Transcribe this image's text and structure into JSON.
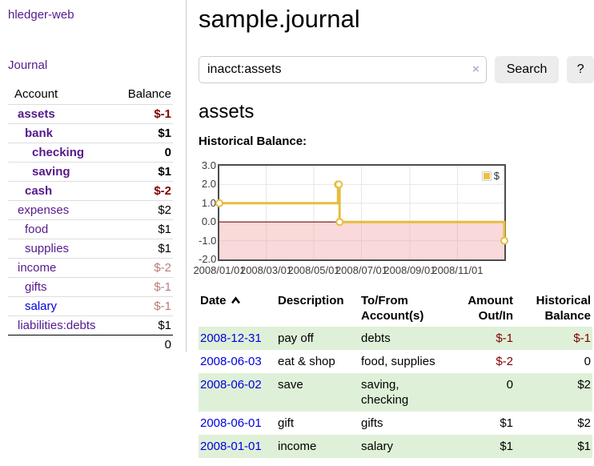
{
  "app": {
    "title": "hledger-web"
  },
  "sidebar": {
    "journal_link": "Journal",
    "table": {
      "headers": {
        "account": "Account",
        "balance": "Balance"
      },
      "rows": [
        {
          "name": "assets",
          "depth": 0,
          "bold": true,
          "balance": "$-1",
          "neg": "strong",
          "link": "visited"
        },
        {
          "name": "bank",
          "depth": 1,
          "bold": true,
          "balance": "$1",
          "neg": "none",
          "link": "visited"
        },
        {
          "name": "checking",
          "depth": 2,
          "bold": true,
          "balance": "0",
          "neg": "none",
          "link": "visited"
        },
        {
          "name": "saving",
          "depth": 2,
          "bold": true,
          "balance": "$1",
          "neg": "none",
          "link": "visited"
        },
        {
          "name": "cash",
          "depth": 1,
          "bold": true,
          "balance": "$-2",
          "neg": "strong",
          "link": "visited"
        },
        {
          "name": "expenses",
          "depth": 0,
          "bold": false,
          "balance": "$2",
          "neg": "none",
          "link": "visited"
        },
        {
          "name": "food",
          "depth": 1,
          "bold": false,
          "balance": "$1",
          "neg": "none",
          "link": "visited"
        },
        {
          "name": "supplies",
          "depth": 1,
          "bold": false,
          "balance": "$1",
          "neg": "none",
          "link": "visited"
        },
        {
          "name": "income",
          "depth": 0,
          "bold": false,
          "balance": "$-2",
          "neg": "soft",
          "link": "visited"
        },
        {
          "name": "gifts",
          "depth": 1,
          "bold": false,
          "balance": "$-1",
          "neg": "soft",
          "link": "visited"
        },
        {
          "name": "salary",
          "depth": 1,
          "bold": false,
          "balance": "$-1",
          "neg": "soft",
          "link": "unvisited"
        },
        {
          "name": "liabilities:debts",
          "depth": 0,
          "bold": false,
          "balance": "$1",
          "neg": "none",
          "link": "visited"
        }
      ],
      "total": "0"
    }
  },
  "header": {
    "title": "sample.journal"
  },
  "search": {
    "value": "inacct:assets",
    "clear_icon": "×",
    "button_label": "Search",
    "help_label": "?"
  },
  "account_page": {
    "title": "assets",
    "chart_label": "Historical Balance:"
  },
  "chart_data": {
    "type": "line",
    "title": "Historical Balance",
    "step": true,
    "series": [
      {
        "name": "$",
        "color": "#E6BD3F",
        "marker": "open-circle",
        "points": [
          [
            "2008-01-01",
            1
          ],
          [
            "2008-06-01",
            2
          ],
          [
            "2008-06-02",
            2
          ],
          [
            "2008-06-03",
            0
          ],
          [
            "2008-12-31",
            -1
          ]
        ]
      }
    ],
    "x_range": [
      "2008-01-01",
      "2008-12-31"
    ],
    "x_ticks": [
      {
        "label": "2008/01/01",
        "date": "2008-01-01"
      },
      {
        "label": "2008/03/01",
        "date": "2008-03-01"
      },
      {
        "label": "2008/05/01",
        "date": "2008-05-01"
      },
      {
        "label": "2008/07/01",
        "date": "2008-07-01"
      },
      {
        "label": "2008/09/01",
        "date": "2008-09-01"
      },
      {
        "label": "2008/11/01",
        "date": "2008-11-01"
      }
    ],
    "y_ticks": [
      "3.0",
      "2.0",
      "1.0",
      "0.0",
      "-1.0",
      "-2.0"
    ],
    "ylim": [
      -2,
      3
    ],
    "grid": true,
    "legend": {
      "position": "top-right",
      "label": "$",
      "swatch_color": "#EDC240"
    },
    "zero_line_color": "#7d0d0d",
    "negative_region_fill": "rgba(240,160,160,0.4)"
  },
  "transactions": {
    "headers": {
      "date": "Date",
      "description": "Description",
      "accounts": "To/From Account(s)",
      "amount": "Amount Out/In",
      "balance": "Historical Balance"
    },
    "sort": {
      "column": "date",
      "direction": "ascending"
    },
    "rows": [
      {
        "date": "2008-12-31",
        "description": "pay off",
        "accounts": "debts",
        "amount": "$-1",
        "amount_neg": true,
        "balance": "$-1",
        "balance_neg": true
      },
      {
        "date": "2008-06-03",
        "description": "eat & shop",
        "accounts": "food, supplies",
        "amount": "$-2",
        "amount_neg": true,
        "balance": "0",
        "balance_neg": false
      },
      {
        "date": "2008-06-02",
        "description": "save",
        "accounts": "saving, checking",
        "amount": "0",
        "amount_neg": false,
        "balance": "$2",
        "balance_neg": false
      },
      {
        "date": "2008-06-01",
        "description": "gift",
        "accounts": "gifts",
        "amount": "$1",
        "amount_neg": false,
        "balance": "$2",
        "balance_neg": false
      },
      {
        "date": "2008-01-01",
        "description": "income",
        "accounts": "salary",
        "amount": "$1",
        "amount_neg": false,
        "balance": "$1",
        "balance_neg": false
      }
    ]
  },
  "colors": {
    "link_purple": "#551a8b",
    "link_blue": "#0000dd",
    "negative_strong": "#800000",
    "negative_soft": "#b97c7c",
    "row_stripe_green": "#dff0d8"
  }
}
